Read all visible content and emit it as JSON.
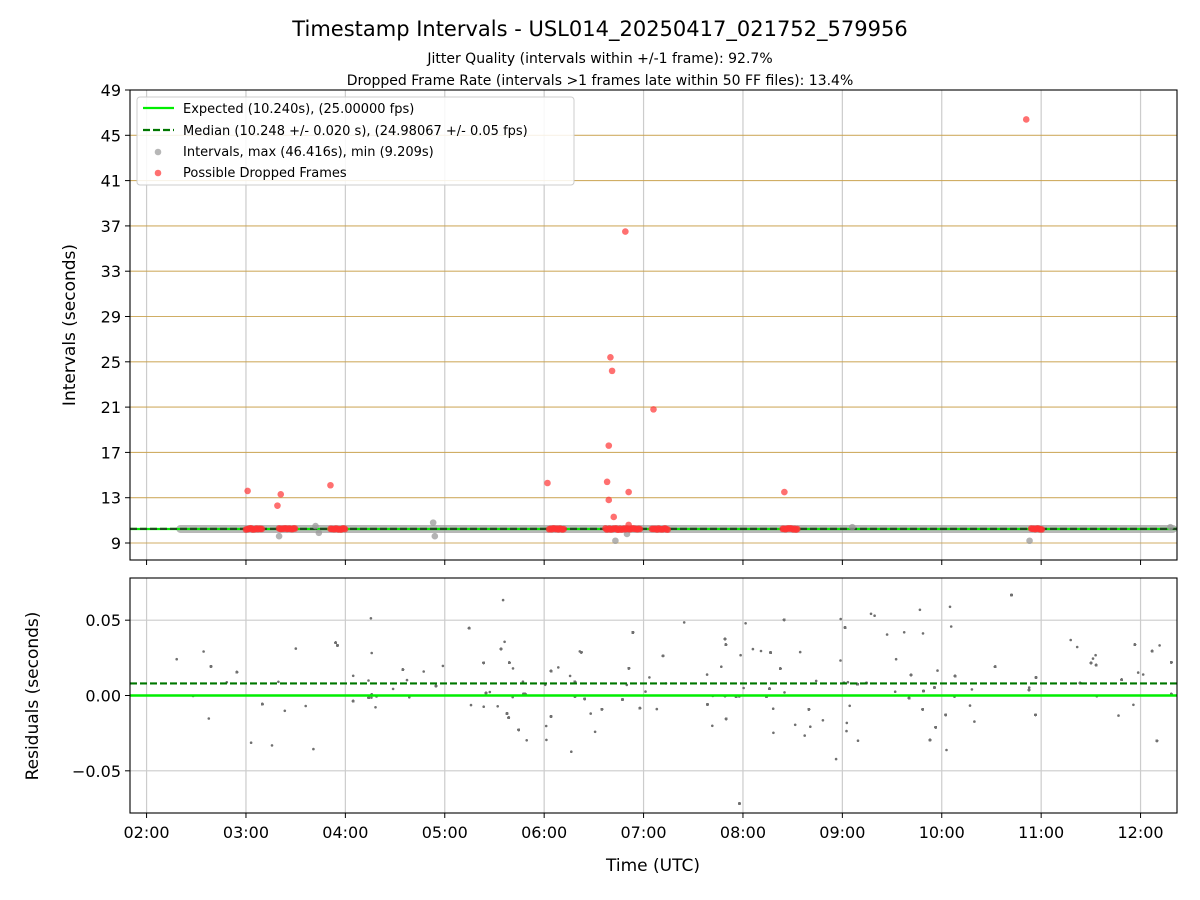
{
  "header": {
    "title": "Timestamp Intervals - USL014_20250417_021752_579956",
    "subtitle_1": "Jitter Quality (intervals within +/-1 frame): 92.7%",
    "subtitle_2": "Dropped Frame Rate (intervals >1 frames late within 50 FF files): 13.4%"
  },
  "colors": {
    "expected": "#00ee00",
    "median": "#007700",
    "intervals": "#999999",
    "dropped": "#ff3333",
    "residuals": "#707070",
    "frame_lines": "#c8a04a",
    "grid": "#cccccc"
  },
  "chart_data": [
    {
      "type": "scatter",
      "panel": "intervals",
      "ylabel": "Intervals (seconds)",
      "ylim": [
        7.5,
        49
      ],
      "y_ticks": [
        "9",
        "13",
        "17",
        "21",
        "25",
        "29",
        "33",
        "37",
        "41",
        "45",
        "49"
      ],
      "x_range_utc": [
        "01:50",
        "12:22"
      ],
      "x_ticks": [
        "02:00",
        "03:00",
        "04:00",
        "05:00",
        "06:00",
        "07:00",
        "08:00",
        "09:00",
        "10:00",
        "11:00",
        "12:00"
      ],
      "grid_x": true,
      "frame_lines_y": [
        9,
        13,
        17,
        21,
        25,
        29,
        33,
        37,
        41,
        45,
        49
      ],
      "legend_position": "upper-left",
      "legend": {
        "expected": "Expected (10.240s), (25.00000 fps)",
        "median": "Median (10.248 +/- 0.020 s), (24.98067 +/- 0.05 fps)",
        "intervals": "Intervals, max (46.416s), min (9.209s)",
        "dropped": "Possible Dropped Frames"
      },
      "expected_value": 10.24,
      "median_value": 10.248,
      "interval_baseline": {
        "start": "02:18",
        "end": "12:22",
        "value": 10.24
      },
      "intervals_outliers": [
        {
          "t": "03:20",
          "y": 9.6
        },
        {
          "t": "03:42",
          "y": 10.5
        },
        {
          "t": "03:44",
          "y": 9.9
        },
        {
          "t": "04:53",
          "y": 10.8
        },
        {
          "t": "04:54",
          "y": 9.6
        },
        {
          "t": "06:43",
          "y": 9.2
        },
        {
          "t": "06:50",
          "y": 9.8
        },
        {
          "t": "09:06",
          "y": 10.4
        },
        {
          "t": "10:53",
          "y": 9.2
        },
        {
          "t": "12:18",
          "y": 10.4
        }
      ],
      "dropped_clusters": [
        {
          "start": "03:00",
          "end": "03:10"
        },
        {
          "start": "03:20",
          "end": "03:30"
        },
        {
          "start": "03:51",
          "end": "04:00"
        },
        {
          "start": "06:03",
          "end": "06:12"
        },
        {
          "start": "06:37",
          "end": "06:58"
        },
        {
          "start": "07:05",
          "end": "07:15"
        },
        {
          "start": "08:24",
          "end": "08:33"
        },
        {
          "start": "10:54",
          "end": "11:01"
        }
      ],
      "dropped_points": [
        {
          "t": "03:01",
          "y": 13.6
        },
        {
          "t": "03:19",
          "y": 12.3
        },
        {
          "t": "03:21",
          "y": 13.3
        },
        {
          "t": "03:51",
          "y": 14.1
        },
        {
          "t": "06:02",
          "y": 14.3
        },
        {
          "t": "06:38",
          "y": 14.4
        },
        {
          "t": "06:39",
          "y": 12.8
        },
        {
          "t": "06:39",
          "y": 17.6
        },
        {
          "t": "06:40",
          "y": 25.4
        },
        {
          "t": "06:41",
          "y": 24.2
        },
        {
          "t": "06:42",
          "y": 11.3
        },
        {
          "t": "06:49",
          "y": 36.5
        },
        {
          "t": "06:51",
          "y": 13.5
        },
        {
          "t": "06:51",
          "y": 10.6
        },
        {
          "t": "07:06",
          "y": 20.8
        },
        {
          "t": "08:25",
          "y": 13.5
        },
        {
          "t": "10:51",
          "y": 46.4
        }
      ]
    },
    {
      "type": "scatter",
      "panel": "residuals",
      "xlabel": "Time (UTC)",
      "ylabel": "Residuals (seconds)",
      "ylim": [
        -0.078,
        0.078
      ],
      "y_ticks": [
        "0.05",
        "0.00",
        "−0.05"
      ],
      "y_tick_values": [
        0.05,
        0.0,
        -0.05
      ],
      "x_range_utc": [
        "01:50",
        "12:22"
      ],
      "x_ticks": [
        "02:00",
        "03:00",
        "04:00",
        "05:00",
        "06:00",
        "07:00",
        "08:00",
        "09:00",
        "10:00",
        "11:00",
        "12:00"
      ],
      "grid": true,
      "expected_value": 0.0,
      "median_value": 0.008,
      "residuals_span": {
        "start": "02:18",
        "end": "12:22",
        "std": 0.022,
        "mean": 0.008,
        "count": 2600
      }
    }
  ]
}
